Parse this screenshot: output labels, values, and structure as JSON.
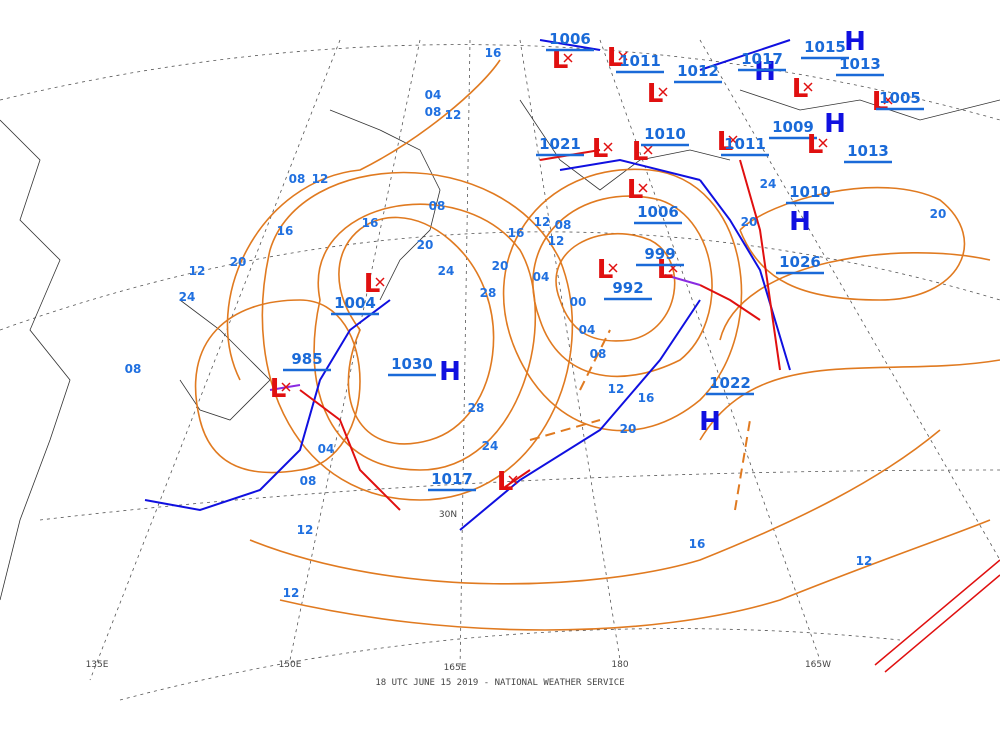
{
  "map": {
    "footer": "18 UTC JUNE 15 2019 - NATIONAL WEATHER SERVICE",
    "lon_labels": [
      "135E",
      "150E",
      "165E",
      "180",
      "165W"
    ],
    "lat_labels": [
      "30N"
    ],
    "centers": [
      {
        "symbol": "L",
        "pressure": "1006"
      },
      {
        "symbol": "L",
        "pressure": "1011"
      },
      {
        "symbol": "L",
        "pressure": "1012"
      },
      {
        "symbol": "H",
        "pressure": "1017"
      },
      {
        "symbol": "H",
        "pressure": "1015"
      },
      {
        "symbol": "L",
        "pressure": "1013"
      },
      {
        "symbol": "L",
        "pressure": "1005"
      },
      {
        "symbol": "H",
        "pressure": "1009"
      },
      {
        "symbol": "L",
        "pressure": "1013"
      },
      {
        "symbol": "L",
        "pressure": "1021"
      },
      {
        "symbol": "L",
        "pressure": "1010"
      },
      {
        "symbol": "L",
        "pressure": "1011"
      },
      {
        "symbol": "L",
        "pressure": "1006"
      },
      {
        "symbol": "H",
        "pressure": "1010"
      },
      {
        "symbol": "H",
        "pressure": "1026"
      },
      {
        "symbol": "L",
        "pressure": "999"
      },
      {
        "symbol": "L",
        "pressure": "992"
      },
      {
        "symbol": "L",
        "pressure": "1004"
      },
      {
        "symbol": "L",
        "pressure": "985"
      },
      {
        "symbol": "H",
        "pressure": "1030"
      },
      {
        "symbol": "H",
        "pressure": "1022"
      },
      {
        "symbol": "L",
        "pressure": "1017"
      }
    ],
    "isobar_labels": [
      "16",
      "04",
      "08",
      "12",
      "08",
      "12",
      "16",
      "20",
      "12",
      "24",
      "08",
      "16",
      "20",
      "24",
      "28",
      "28",
      "24",
      "20",
      "16",
      "12",
      "08",
      "04",
      "00",
      "04",
      "08",
      "12",
      "16",
      "20",
      "24",
      "20",
      "16",
      "12",
      "08",
      "12",
      "12",
      "04",
      "08",
      "12",
      "20"
    ]
  }
}
